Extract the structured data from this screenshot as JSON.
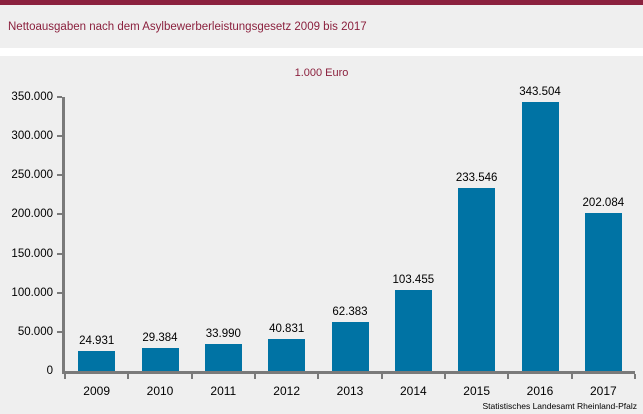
{
  "header": {
    "title": "Nettoausgaben nach dem Asylbewerberleistungsgesetz 2009 bis 2017"
  },
  "footer": {
    "source": "Statistisches Landesamt Rheinland-Pfalz"
  },
  "colors": {
    "accent_maroon": "#8b213e",
    "panel_gray": "#efefef",
    "bar_blue": "#0073a4",
    "axis_gray": "#7a7a7a",
    "text_black": "#000000"
  },
  "chart_data": {
    "type": "bar",
    "title": "Nettoausgaben nach dem Asylbewerberleistungsgesetz 2009 bis 2017",
    "unit_label": "1.000 Euro",
    "xlabel": "",
    "ylabel": "",
    "categories": [
      "2009",
      "2010",
      "2011",
      "2012",
      "2013",
      "2014",
      "2015",
      "2016",
      "2017"
    ],
    "values": [
      24931,
      29384,
      33990,
      40831,
      62383,
      103455,
      233546,
      343504,
      202084
    ],
    "value_labels": [
      "24.931",
      "29.384",
      "33.990",
      "40.831",
      "62.383",
      "103.455",
      "233.546",
      "343.504",
      "202.084"
    ],
    "ylim": [
      0,
      350000
    ],
    "ytick_step": 50000,
    "ytick_labels": [
      "0",
      "50.000",
      "100.000",
      "150.000",
      "200.000",
      "250.000",
      "300.000",
      "350.000"
    ],
    "grid": false,
    "legend": "none",
    "data_labels": true,
    "bar_color": "#0073a4",
    "axis_color": "#7a7a7a"
  }
}
